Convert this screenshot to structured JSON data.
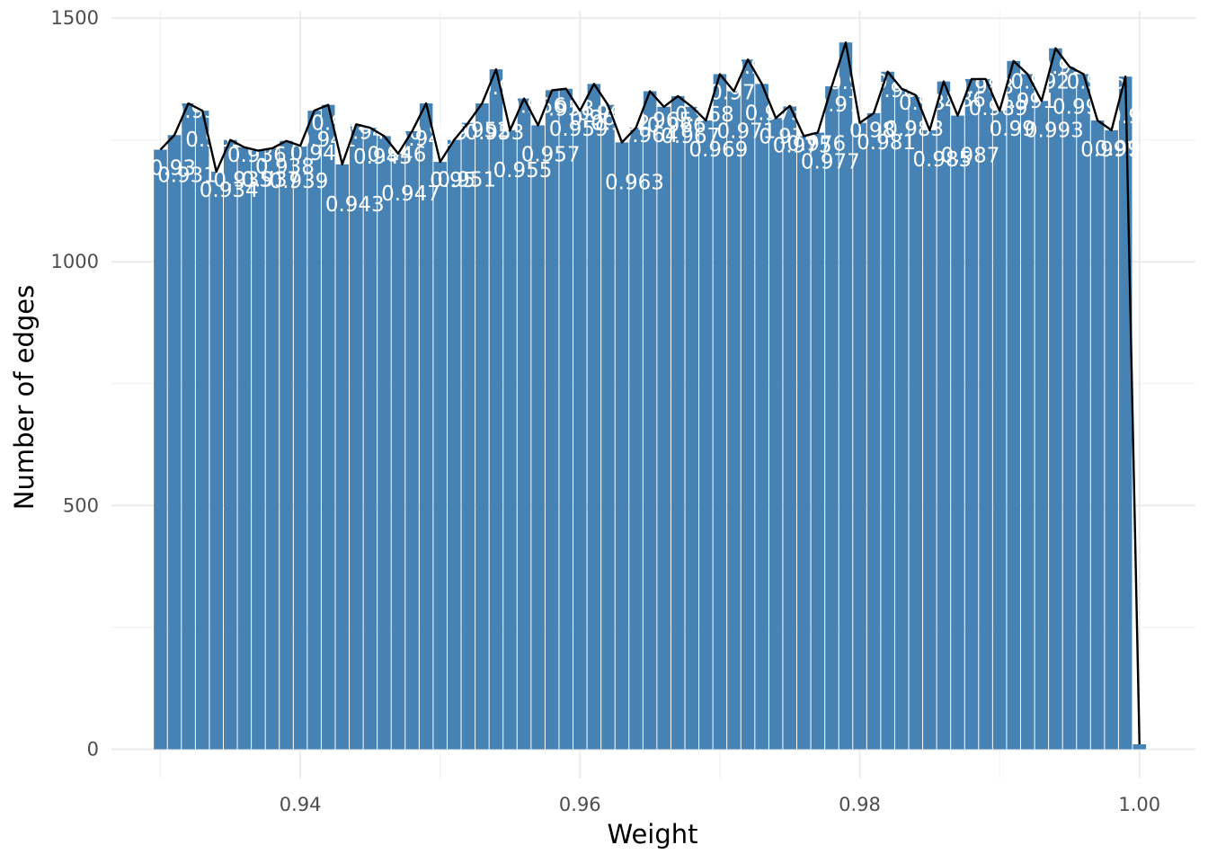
{
  "chart_data": {
    "type": "bar",
    "xlabel": "Weight",
    "ylabel": "Number of edges",
    "xlim": [
      0.9265,
      1.004
    ],
    "ylim": [
      -60,
      1515
    ],
    "x_ticks": [
      0.94,
      0.96,
      0.98,
      1.0
    ],
    "x_tick_labels": [
      "0.94",
      "0.96",
      "0.98",
      "1.00"
    ],
    "y_ticks": [
      0,
      500,
      1000,
      1500
    ],
    "y_tick_labels": [
      "0",
      "500",
      "1000",
      "1500"
    ],
    "grid": true,
    "bar_color": "#4682b4",
    "line_color": "#000000",
    "bins": {
      "x": [
        0.93,
        0.931,
        0.932,
        0.933,
        0.934,
        0.935,
        0.936,
        0.937,
        0.938,
        0.939,
        0.94,
        0.941,
        0.942,
        0.943,
        0.944,
        0.945,
        0.946,
        0.947,
        0.948,
        0.949,
        0.95,
        0.951,
        0.952,
        0.953,
        0.954,
        0.955,
        0.956,
        0.957,
        0.958,
        0.959,
        0.96,
        0.961,
        0.962,
        0.963,
        0.964,
        0.965,
        0.966,
        0.967,
        0.968,
        0.969,
        0.97,
        0.971,
        0.972,
        0.973,
        0.974,
        0.975,
        0.976,
        0.977,
        0.978,
        0.979,
        0.98,
        0.981,
        0.982,
        0.983,
        0.984,
        0.985,
        0.986,
        0.987,
        0.988,
        0.989,
        0.99,
        0.991,
        0.992,
        0.993,
        0.994,
        0.995,
        0.996,
        0.997,
        0.998,
        0.999,
        1.0
      ],
      "count": [
        1230,
        1260,
        1325,
        1310,
        1185,
        1250,
        1235,
        1228,
        1233,
        1248,
        1238,
        1310,
        1322,
        1200,
        1282,
        1275,
        1258,
        1222,
        1268,
        1325,
        1205,
        1250,
        1285,
        1325,
        1395,
        1270,
        1335,
        1280,
        1352,
        1355,
        1310,
        1365,
        1322,
        1245,
        1275,
        1350,
        1318,
        1340,
        1318,
        1290,
        1385,
        1350,
        1415,
        1365,
        1295,
        1320,
        1258,
        1265,
        1360,
        1450,
        1285,
        1305,
        1390,
        1355,
        1342,
        1270,
        1370,
        1300,
        1375,
        1375,
        1310,
        1412,
        1385,
        1330,
        1438,
        1400,
        1385,
        1290,
        1270,
        1380,
        10
      ],
      "labels": [
        "0.93",
        "0.931",
        "0.932",
        "0.933",
        "0.934",
        "0.935",
        "0.936",
        "0.937",
        "0.938",
        "0.939",
        "0.94",
        "0.941",
        "0.942",
        "0.943",
        "0.944",
        "0.945",
        "0.946",
        "0.947",
        "0.948",
        "0.949",
        "0.95",
        "0.951",
        "0.952",
        "0.953",
        "0.954",
        "0.955",
        "0.956",
        "0.957",
        "0.958",
        "0.959",
        "0.96",
        "0.961",
        "0.962",
        "0.963",
        "0.964",
        "0.965",
        "0.966",
        "0.967",
        "0.968",
        "0.969",
        "0.97",
        "0.971",
        "0.972",
        "0.973",
        "0.974",
        "0.975",
        "0.976",
        "0.977",
        "0.978",
        "0.979",
        "0.98",
        "0.981",
        "0.982",
        "0.983",
        "0.984",
        "0.985",
        "0.986",
        "0.987",
        "0.988",
        "0.989",
        "0.99",
        "0.991",
        "0.992",
        "0.993",
        "0.994",
        "0.995",
        "0.996",
        "0.997",
        "0.998",
        "0.999",
        "1"
      ]
    }
  }
}
